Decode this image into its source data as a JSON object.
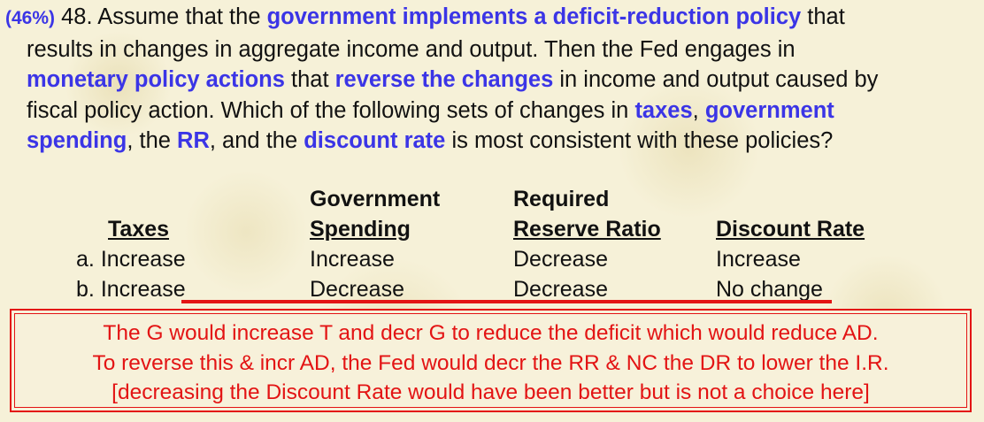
{
  "question": {
    "percent": "(46%)",
    "line1": {
      "t1": " 48. Assume that the ",
      "k1": "government implements a deficit-reduction policy",
      "t2": " that"
    },
    "line2": {
      "t1": "results in changes in aggregate income and output. Then the Fed engages in"
    },
    "line3": {
      "k1": "monetary policy actions",
      "t1": " that ",
      "k2": "reverse the changes",
      "t2": " in income and output caused by"
    },
    "line4": {
      "t1": "fiscal policy action. Which of the following sets of changes in ",
      "k1": "taxes",
      "t2": ", ",
      "k2": "government"
    },
    "line5": {
      "k1": "spending",
      "t1": ", the ",
      "k2": "RR",
      "t2": ", and the ",
      "k3": "discount rate",
      "t3": " is most consistent with these policies?"
    }
  },
  "table": {
    "headers": {
      "taxes": "Taxes",
      "gov_top": "Government",
      "gov_bottom": "Spending",
      "rr_top": "Required",
      "rr_bottom": "Reserve Ratio",
      "dr": "Discount Rate"
    },
    "rows": [
      {
        "letter": "a.",
        "taxes": "Increase",
        "gov": "Increase",
        "rr": "Decrease",
        "dr": "Increase"
      },
      {
        "letter": "b.",
        "taxes": "Increase",
        "gov": "Decrease",
        "rr": "Decrease",
        "dr": "No change"
      }
    ]
  },
  "answer": {
    "line1": "The G would increase T and decr G to reduce the deficit which would reduce AD.",
    "line2": "To reverse this & incr AD, the Fed would decr the RR & NC the DR to lower the I.R.",
    "line3": "[decreasing the Discount Rate would have been better but is not a choice here]"
  },
  "colors": {
    "keyword": "#3b35e6",
    "answer": "#e31414",
    "background": "#f6f1d8"
  }
}
